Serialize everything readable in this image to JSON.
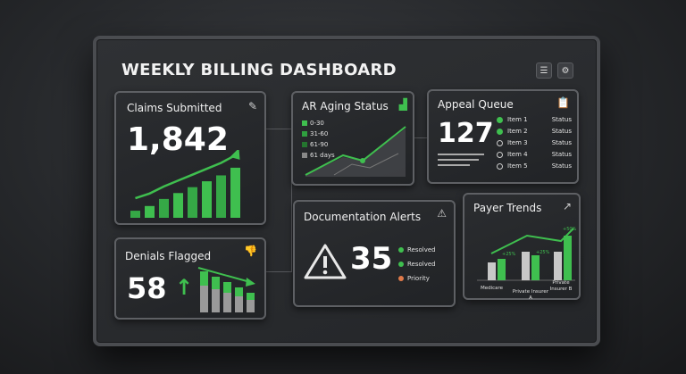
{
  "title": "WEEKLY BILLING DASHBOARD",
  "header_icons": [
    "menu-icon",
    "gear-icon"
  ],
  "claims": {
    "title": "Claims Submitted",
    "value": "1,842",
    "icon": "edit-icon",
    "bars": [
      0.12,
      0.2,
      0.32,
      0.42,
      0.52,
      0.62,
      0.72,
      0.85
    ]
  },
  "denials": {
    "title": "Denials Flagged",
    "value": "58",
    "icon": "thumbs-down-icon",
    "arrow": "↑"
  },
  "ar_aging": {
    "title": "AR Aging Status",
    "icon": "bar-chart-icon",
    "legend": [
      "0-30",
      "31-60",
      "61-90",
      "61 days"
    ]
  },
  "appeal": {
    "title": "Appeal Queue",
    "value": "127",
    "icon": "checklist-icon",
    "items": [
      {
        "label": "Item 1",
        "status": "Status",
        "state": "done"
      },
      {
        "label": "Item 2",
        "status": "Status",
        "state": "done"
      },
      {
        "label": "Item 3",
        "status": "Status",
        "state": "open"
      },
      {
        "label": "Item 4",
        "status": "Status",
        "state": "open"
      },
      {
        "label": "Item 5",
        "status": "Status",
        "state": "open"
      }
    ]
  },
  "docs": {
    "title": "Documentation Alerts",
    "value": "35",
    "icon": "warning-icon",
    "legend": [
      {
        "label": "Resolved",
        "color": "#3fbf4f"
      },
      {
        "label": "Resolved",
        "color": "#3fbf4f"
      },
      {
        "label": "Priority",
        "color": "#e07a4a"
      }
    ]
  },
  "payer": {
    "title": "Payer Trends",
    "icon": "trend-up-icon",
    "groups": [
      {
        "label": "Medicare",
        "change": "+25%"
      },
      {
        "label": "Private Insurer A",
        "change": "+25%"
      },
      {
        "label": "Private Insurer B",
        "change": "+50%"
      }
    ]
  },
  "colors": {
    "accent": "#3fbf4f",
    "panel_border": "#5e6064",
    "bg": "#26282b"
  }
}
